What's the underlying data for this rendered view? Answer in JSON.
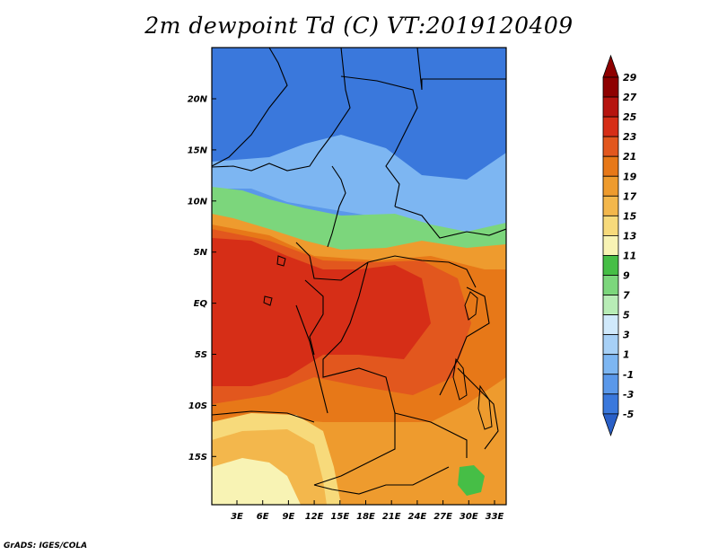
{
  "title": "2m dewpoint Td (C) VT:2019120409",
  "credit": "GrADS: IGES/COLA",
  "map": {
    "lat_labels": [
      "20N",
      "15N",
      "10N",
      "5N",
      "EQ",
      "5S",
      "10S",
      "15S"
    ],
    "lon_labels": [
      "3E",
      "6E",
      "9E",
      "12E",
      "15E",
      "18E",
      "21E",
      "24E",
      "27E",
      "30E",
      "33E"
    ],
    "colors": {
      "c_m5": "#2a60c8",
      "c_m3": "#3a78dc",
      "c_m1": "#5a98ea",
      "c_1": "#7db6f2",
      "c_3": "#a7d0f6",
      "c_5": "#d0e9fb",
      "c_7": "#b8ecb6",
      "c_9": "#7cd67c",
      "c_11": "#46be46",
      "c_13": "#f8f3b4",
      "c_15": "#f7da7b",
      "c_17": "#f3b74c",
      "c_19": "#ee9b2e",
      "c_21": "#e77818",
      "c_23": "#e2571e",
      "c_25": "#d62e17",
      "c_27": "#b6140f",
      "c_29": "#8e0000"
    }
  },
  "colorbar": {
    "labels": [
      "29",
      "27",
      "25",
      "23",
      "21",
      "19",
      "17",
      "15",
      "13",
      "11",
      "9",
      "7",
      "5",
      "3",
      "1",
      "-1",
      "-3",
      "-5"
    ]
  }
}
